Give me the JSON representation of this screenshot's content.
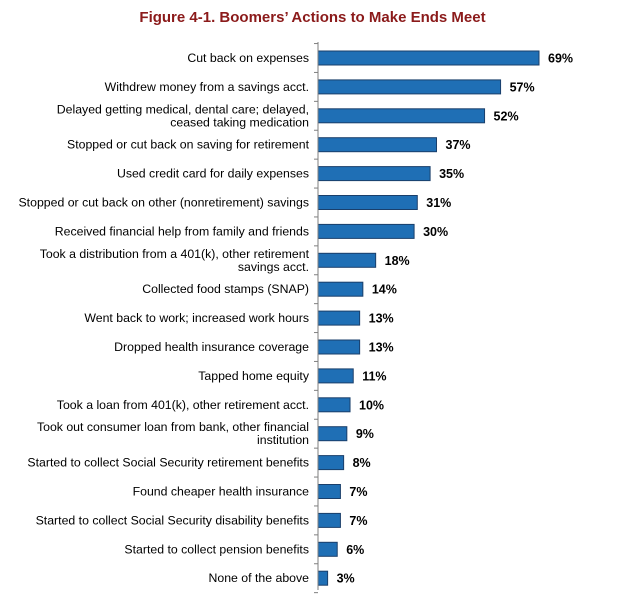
{
  "chart_data": {
    "type": "bar",
    "orientation": "horizontal",
    "title": "Figure 4-1. Boomers’ Actions to Make Ends Meet",
    "xlabel": "",
    "ylabel": "",
    "xlim": [
      0,
      100
    ],
    "grid": false,
    "bar_color": "#1f6fb5",
    "bar_edge_color": "#1a3f6b",
    "title_color": "#8b1a1a",
    "categories": [
      [
        "Cut back on expenses"
      ],
      [
        "Withdrew money from a savings acct."
      ],
      [
        "Delayed getting medical, dental care; delayed,",
        "ceased taking medication"
      ],
      [
        "Stopped or cut back on saving for retirement"
      ],
      [
        "Used credit card for daily expenses"
      ],
      [
        "Stopped or cut back on other (nonretirement) savings"
      ],
      [
        "Received financial help from family and friends"
      ],
      [
        "Took a distribution from a 401(k), other retirement",
        "savings acct."
      ],
      [
        "Collected food stamps (SNAP)"
      ],
      [
        "Went back to work; increased work hours"
      ],
      [
        "Dropped health insurance coverage"
      ],
      [
        "Tapped home equity"
      ],
      [
        "Took a loan from 401(k), other retirement acct."
      ],
      [
        "Took out consumer loan from bank, other financial",
        "institution"
      ],
      [
        "Started to collect Social Security retirement benefits"
      ],
      [
        "Found cheaper health insurance"
      ],
      [
        "Started to collect Social Security disability benefits"
      ],
      [
        "Started to collect pension benefits"
      ],
      [
        "None of the above"
      ]
    ],
    "values": [
      69,
      57,
      52,
      37,
      35,
      31,
      30,
      18,
      14,
      13,
      13,
      11,
      10,
      9,
      8,
      7,
      7,
      6,
      3
    ],
    "value_labels": [
      "69%",
      "57%",
      "52%",
      "37%",
      "35%",
      "31%",
      "30%",
      "18%",
      "14%",
      "13%",
      "13%",
      "11%",
      "10%",
      "9%",
      "8%",
      "7%",
      "7%",
      "6%",
      "3%"
    ]
  }
}
